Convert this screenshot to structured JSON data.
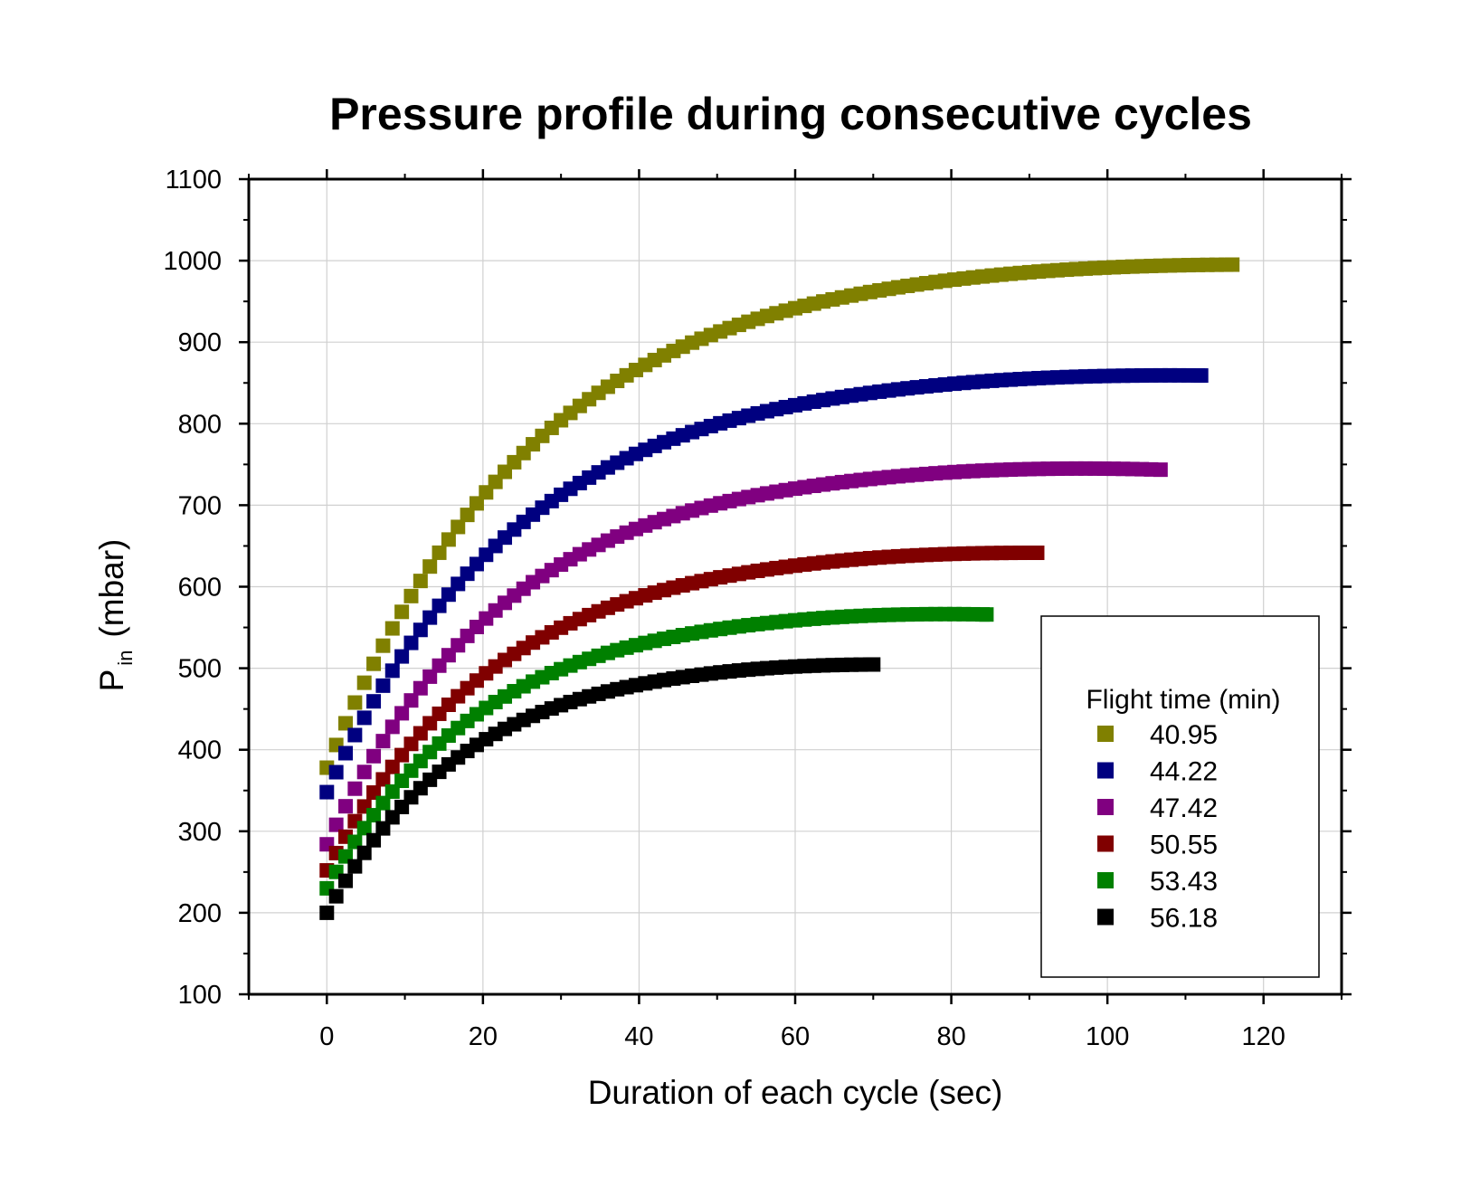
{
  "chart_data": {
    "type": "scatter",
    "title": "Pressure profile during consecutive cycles",
    "xlabel": "Duration of each cycle (sec)",
    "ylabel": "P",
    "ylabel_subscript": "in",
    "ylabel_unit": "(mbar)",
    "xlim": [
      -10,
      130
    ],
    "ylim": [
      100,
      1100
    ],
    "xticks": [
      0,
      20,
      40,
      60,
      80,
      100,
      120
    ],
    "yticks": [
      100,
      200,
      300,
      400,
      500,
      600,
      700,
      800,
      900,
      1000,
      1100
    ],
    "grid": true,
    "legend": {
      "title": "Flight time (min)",
      "placement": "bottom-right"
    },
    "marker": "square",
    "sample_step": 1.2,
    "series": [
      {
        "name": "40.95",
        "color": "#808000",
        "y0": 378,
        "ymax": 1007,
        "tau": 26.5,
        "xmax": 116,
        "end_drop": 4
      },
      {
        "name": "44.22",
        "color": "#000080",
        "y0": 348,
        "ymax": 870,
        "tau": 25,
        "xmax": 112,
        "end_drop": 5
      },
      {
        "name": "47.42",
        "color": "#800080",
        "y0": 284,
        "ymax": 755,
        "tau": 23,
        "xmax": 107,
        "end_drop": 7
      },
      {
        "name": "50.55",
        "color": "#800000",
        "y0": 252,
        "ymax": 652,
        "tau": 22,
        "xmax": 91,
        "end_drop": 4
      },
      {
        "name": "53.43",
        "color": "#008000",
        "y0": 230,
        "ymax": 576,
        "tau": 20,
        "xmax": 84.5,
        "end_drop": 5
      },
      {
        "name": "56.18",
        "color": "#000000",
        "y0": 200,
        "ymax": 514,
        "tau": 18,
        "xmax": 70,
        "end_drop": 3
      }
    ]
  }
}
